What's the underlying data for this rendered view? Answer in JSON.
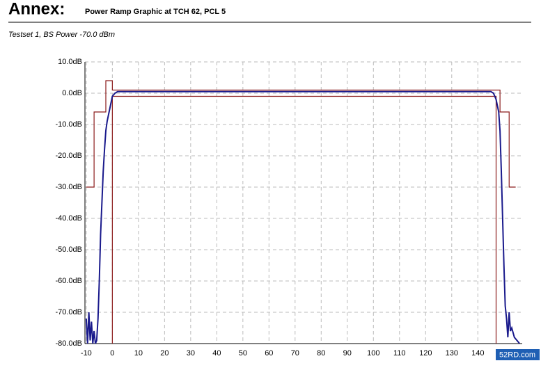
{
  "header": {
    "title": "Annex:",
    "subtitle": "Power Ramp Graphic at TCH 62, PCL 5"
  },
  "watermark": "52RD.com",
  "chart_data": {
    "type": "line",
    "title": "Testset 1, BS Power -70.0 dBm",
    "xlim": [
      -10.5,
      157
    ],
    "ylim": [
      -80,
      10
    ],
    "xticks": [
      -10,
      0,
      10,
      20,
      30,
      40,
      50,
      60,
      70,
      80,
      90,
      100,
      110,
      120,
      130,
      140
    ],
    "yticks": [
      {
        "value": 10,
        "label": "10.0dB"
      },
      {
        "value": 0,
        "label": "0.0dB"
      },
      {
        "value": -10,
        "label": "-10.0dB"
      },
      {
        "value": -20,
        "label": "-20.0dB"
      },
      {
        "value": -30,
        "label": "-30.0dB"
      },
      {
        "value": -40,
        "label": "-40.0dB"
      },
      {
        "value": -50,
        "label": "-50.0dB"
      },
      {
        "value": -60,
        "label": "-60.0dB"
      },
      {
        "value": -70,
        "label": "-70.0dB"
      },
      {
        "value": -80,
        "label": "-80.0dB"
      }
    ],
    "grid": true,
    "series": [
      {
        "color": "#8b1a1a",
        "x": [
          -10,
          -7,
          -7,
          -2.5,
          -2.5,
          0,
          0,
          148.5,
          148.5,
          152,
          152,
          154.5
        ],
        "values": [
          -30,
          -30,
          -6,
          -6,
          4,
          4,
          1,
          1,
          -6,
          -6,
          -30,
          -30
        ]
      },
      {
        "color": "#8b1a1a",
        "x": [
          0,
          0,
          147,
          147
        ],
        "values": [
          -80,
          -1,
          -1,
          -80
        ]
      },
      {
        "color": "#1a1a8c",
        "x": [
          -10,
          -9.5,
          -9,
          -8.5,
          -8,
          -7.5,
          -7,
          -6.5,
          -6,
          -5.5,
          -5,
          -4.5,
          -4,
          -3.5,
          -3,
          -2.5,
          -2,
          -1.5,
          -1,
          -0.5,
          0,
          1,
          2,
          145,
          146,
          147,
          148,
          148.5,
          149,
          149.5,
          150,
          150.5,
          151,
          151.5,
          152,
          152.5,
          153,
          154,
          155,
          156
        ],
        "values": [
          -72,
          -80,
          -70,
          -79,
          -73,
          -80,
          -76,
          -80,
          -79,
          -72,
          -60,
          -45,
          -35,
          -25,
          -18,
          -12,
          -9,
          -7,
          -5,
          -3,
          -1,
          0,
          0.5,
          0.5,
          0,
          -2,
          -6,
          -12,
          -25,
          -40,
          -55,
          -68,
          -72,
          -78,
          -70,
          -76,
          -75,
          -78,
          -79,
          -80
        ]
      }
    ]
  }
}
